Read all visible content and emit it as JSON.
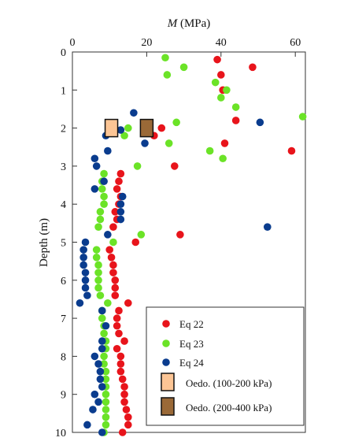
{
  "chart_data": {
    "type": "scatter",
    "title": "",
    "xlabel": "M (MPa)",
    "xlabel_italic_part": "M",
    "xlabel_rest": " (MPa)",
    "ylabel": "Depth (m)",
    "xlim": [
      0,
      62
    ],
    "ylim": [
      10,
      0
    ],
    "x_axis_position": "top",
    "xticks": [
      0,
      20,
      40,
      60
    ],
    "yticks": [
      0,
      1,
      2,
      3,
      4,
      5,
      6,
      7,
      8,
      9,
      10
    ],
    "grid": false,
    "legend_position": "bottom-right",
    "series": [
      {
        "name": "Eq 22",
        "marker": "circle",
        "color": "#e8141b",
        "points": [
          [
            39,
            0.2
          ],
          [
            48.5,
            0.4
          ],
          [
            40,
            0.6
          ],
          [
            40.5,
            1.0
          ],
          [
            44,
            1.8
          ],
          [
            24,
            2.0
          ],
          [
            22,
            2.2
          ],
          [
            41,
            2.4
          ],
          [
            59,
            2.6
          ],
          [
            27.5,
            3.0
          ],
          [
            13,
            3.2
          ],
          [
            12.5,
            3.4
          ],
          [
            12,
            3.6
          ],
          [
            13,
            3.8
          ],
          [
            12.5,
            4.0
          ],
          [
            11.5,
            4.2
          ],
          [
            12,
            4.4
          ],
          [
            11,
            4.6
          ],
          [
            29,
            4.8
          ],
          [
            17,
            5.0
          ],
          [
            10,
            5.2
          ],
          [
            10.5,
            5.4
          ],
          [
            11,
            5.6
          ],
          [
            11,
            5.8
          ],
          [
            11.5,
            6.0
          ],
          [
            11.5,
            6.2
          ],
          [
            11.5,
            6.4
          ],
          [
            15,
            6.6
          ],
          [
            12.5,
            6.8
          ],
          [
            12,
            7.0
          ],
          [
            12,
            7.2
          ],
          [
            12.5,
            7.4
          ],
          [
            14,
            7.6
          ],
          [
            12,
            7.8
          ],
          [
            13,
            8.0
          ],
          [
            13,
            8.2
          ],
          [
            13,
            8.4
          ],
          [
            13.5,
            8.6
          ],
          [
            14,
            8.8
          ],
          [
            14,
            9.0
          ],
          [
            14,
            9.2
          ],
          [
            14.5,
            9.4
          ],
          [
            15,
            9.6
          ],
          [
            15,
            9.8
          ],
          [
            13.5,
            10.0
          ]
        ]
      },
      {
        "name": "Eq 23",
        "marker": "circle",
        "color": "#6be327",
        "points": [
          [
            25,
            0.15
          ],
          [
            30,
            0.4
          ],
          [
            25.5,
            0.6
          ],
          [
            38.5,
            0.8
          ],
          [
            41.5,
            1.0
          ],
          [
            40,
            1.2
          ],
          [
            44,
            1.45
          ],
          [
            62,
            1.7
          ],
          [
            28,
            1.85
          ],
          [
            15,
            2.0
          ],
          [
            14,
            2.2
          ],
          [
            26,
            2.4
          ],
          [
            37,
            2.6
          ],
          [
            40.5,
            2.8
          ],
          [
            17.5,
            3.0
          ],
          [
            8.5,
            3.2
          ],
          [
            8,
            3.4
          ],
          [
            8,
            3.6
          ],
          [
            8.5,
            3.8
          ],
          [
            8.5,
            4.0
          ],
          [
            7.5,
            4.2
          ],
          [
            7.5,
            4.4
          ],
          [
            7,
            4.6
          ],
          [
            18.5,
            4.8
          ],
          [
            11,
            5.0
          ],
          [
            6.5,
            5.2
          ],
          [
            6.5,
            5.4
          ],
          [
            7,
            5.6
          ],
          [
            7,
            5.8
          ],
          [
            7,
            6.0
          ],
          [
            7,
            6.2
          ],
          [
            7.5,
            6.4
          ],
          [
            9.5,
            6.6
          ],
          [
            8,
            6.8
          ],
          [
            8,
            7.0
          ],
          [
            8.5,
            7.2
          ],
          [
            8.5,
            7.4
          ],
          [
            9,
            7.6
          ],
          [
            9,
            7.8
          ],
          [
            8.5,
            8.0
          ],
          [
            8.5,
            8.2
          ],
          [
            9,
            8.4
          ],
          [
            9,
            8.6
          ],
          [
            9,
            8.8
          ],
          [
            9,
            9.0
          ],
          [
            9,
            9.2
          ],
          [
            9,
            9.4
          ],
          [
            9,
            9.6
          ],
          [
            9,
            9.8
          ],
          [
            8.5,
            10.0
          ]
        ]
      },
      {
        "name": "Eq 24",
        "marker": "circle",
        "color": "#0a3c8e",
        "points": [
          [
            16.5,
            1.6
          ],
          [
            50.5,
            1.85
          ],
          [
            13,
            2.05
          ],
          [
            9,
            2.2
          ],
          [
            19.5,
            2.4
          ],
          [
            9.5,
            2.6
          ],
          [
            6,
            2.8
          ],
          [
            6.5,
            3.0
          ],
          [
            8.5,
            3.4
          ],
          [
            6,
            3.6
          ],
          [
            13.5,
            3.8
          ],
          [
            13,
            4.0
          ],
          [
            13,
            4.2
          ],
          [
            13,
            4.4
          ],
          [
            52.5,
            4.6
          ],
          [
            9.5,
            4.8
          ],
          [
            3.5,
            5.0
          ],
          [
            3,
            5.2
          ],
          [
            3,
            5.4
          ],
          [
            3,
            5.6
          ],
          [
            3.5,
            5.8
          ],
          [
            3.5,
            6.0
          ],
          [
            3.5,
            6.2
          ],
          [
            4,
            6.4
          ],
          [
            2,
            6.6
          ],
          [
            8,
            6.8
          ],
          [
            9,
            7.2
          ],
          [
            8,
            7.6
          ],
          [
            8,
            7.8
          ],
          [
            6,
            8.0
          ],
          [
            7,
            8.2
          ],
          [
            7.5,
            8.4
          ],
          [
            7.5,
            8.6
          ],
          [
            8,
            8.8
          ],
          [
            6,
            9.0
          ],
          [
            7,
            9.2
          ],
          [
            5.5,
            9.4
          ],
          [
            33.5,
            9.6
          ],
          [
            4,
            9.8
          ],
          [
            8,
            10.0
          ]
        ]
      },
      {
        "name": "Oedo. (100-200 kPa)",
        "marker": "square",
        "color": "#fcc595",
        "points": [
          [
            10.5,
            2.0
          ]
        ]
      },
      {
        "name": "Oedo. (200-400 kPa)",
        "marker": "square",
        "color": "#9a6937",
        "points": [
          [
            20,
            2.0
          ]
        ]
      }
    ]
  }
}
